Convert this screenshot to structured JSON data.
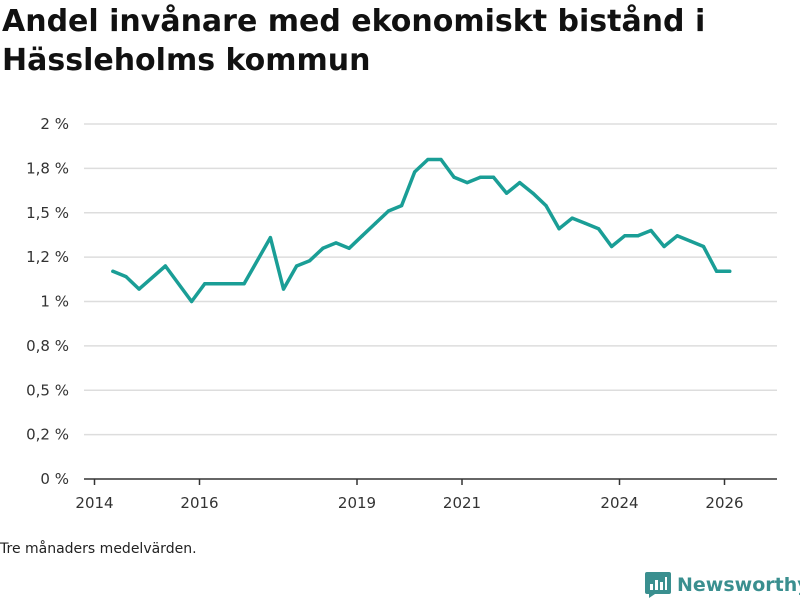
{
  "colors": {
    "line": "#1a9e96",
    "grid": "#dddddd",
    "axis": "#333333",
    "brand": "#3a8f8f"
  },
  "chart_data": {
    "type": "line",
    "title": "Andel invånare med ekonomiskt bistånd i Hässleholms kommun",
    "xlabel": "",
    "ylabel": "",
    "xlim": [
      2013.8,
      2027.0
    ],
    "ylim": [
      0,
      2.0
    ],
    "y_ticks": [
      {
        "value": 0,
        "label": "0 %"
      },
      {
        "value": 0.25,
        "label": "0,2 %"
      },
      {
        "value": 0.5,
        "label": "0,5 %"
      },
      {
        "value": 0.75,
        "label": "0,8 %"
      },
      {
        "value": 1.0,
        "label": "1 %"
      },
      {
        "value": 1.25,
        "label": "1,2 %"
      },
      {
        "value": 1.5,
        "label": "1,5 %"
      },
      {
        "value": 1.75,
        "label": "1,8 %"
      },
      {
        "value": 2.0,
        "label": "2 %"
      }
    ],
    "x_ticks": [
      {
        "value": 2014,
        "label": "2014"
      },
      {
        "value": 2016,
        "label": "2016"
      },
      {
        "value": 2019,
        "label": "2019"
      },
      {
        "value": 2021,
        "label": "2021"
      },
      {
        "value": 2024,
        "label": "2024"
      },
      {
        "value": 2026,
        "label": "2026"
      }
    ],
    "series": [
      {
        "name": "Andel invånare med ekonomiskt bistånd",
        "x": [
          2014.35,
          2014.6,
          2014.85,
          2015.35,
          2015.85,
          2016.1,
          2016.35,
          2016.6,
          2016.85,
          2017.35,
          2017.6,
          2017.85,
          2018.1,
          2018.35,
          2018.6,
          2018.85,
          2019.1,
          2019.35,
          2019.6,
          2019.85,
          2020.1,
          2020.35,
          2020.6,
          2020.85,
          2021.1,
          2021.35,
          2021.6,
          2021.85,
          2022.1,
          2022.35,
          2022.6,
          2022.85,
          2023.1,
          2023.35,
          2023.6,
          2023.85,
          2024.1,
          2024.35,
          2024.6,
          2024.85,
          2025.1,
          2025.35,
          2025.6,
          2025.85,
          2026.1
        ],
        "values": [
          1.17,
          1.14,
          1.07,
          1.2,
          1.0,
          1.1,
          1.1,
          1.1,
          1.1,
          1.36,
          1.07,
          1.2,
          1.23,
          1.3,
          1.33,
          1.3,
          1.37,
          1.44,
          1.51,
          1.54,
          1.73,
          1.8,
          1.8,
          1.7,
          1.67,
          1.7,
          1.7,
          1.61,
          1.67,
          1.61,
          1.54,
          1.41,
          1.47,
          1.44,
          1.41,
          1.31,
          1.37,
          1.37,
          1.4,
          1.31,
          1.37,
          1.34,
          1.31,
          1.17,
          1.17
        ]
      }
    ],
    "footnote": "Tre månaders medelvärden.",
    "source_brand": "Newsworthy"
  }
}
